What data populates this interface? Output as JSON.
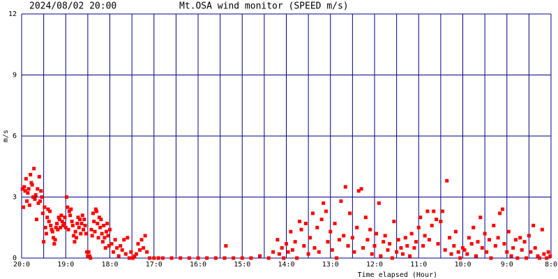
{
  "chart_data": {
    "type": "scatter",
    "date_label": "2024/08/02 20:00",
    "title": "Mt.OSA wind monitor (SPEED m/s)",
    "y_label": "m/s",
    "x_label": "Time elapsed (Hour)",
    "color": "#ff0000",
    "grid_color": "#000080",
    "grid": true,
    "xlim": [
      20,
      8
    ],
    "ylim": [
      0,
      12
    ],
    "yticks": [
      0,
      3,
      6,
      9,
      12
    ],
    "xticks": [
      {
        "value": 20,
        "label": "20:0"
      },
      {
        "value": 19,
        "label": "19:0"
      },
      {
        "value": 18,
        "label": "18:0"
      },
      {
        "value": 17,
        "label": "17:0"
      },
      {
        "value": 16,
        "label": "16:0"
      },
      {
        "value": 15,
        "label": "15:0"
      },
      {
        "value": 14,
        "label": "14:0"
      },
      {
        "value": 13,
        "label": "13:0"
      },
      {
        "value": 12,
        "label": "12:0"
      },
      {
        "value": 11,
        "label": "11:0"
      },
      {
        "value": 10,
        "label": "10:0"
      },
      {
        "value": 9,
        "label": "9:0"
      },
      {
        "value": 8,
        "label": "8:0"
      }
    ],
    "xminor": [
      19.5,
      18.5,
      17.5,
      16.5,
      15.5,
      14.5,
      13.5,
      12.5,
      11.5,
      10.5,
      9.5,
      8.5
    ],
    "x": [
      19.98,
      19.96,
      19.94,
      19.92,
      19.9,
      19.88,
      19.86,
      19.84,
      19.82,
      19.8,
      19.78,
      19.76,
      19.74,
      19.72,
      19.7,
      19.68,
      19.66,
      19.64,
      19.62,
      19.6,
      19.58,
      19.56,
      19.54,
      19.52,
      19.5,
      19.48,
      19.46,
      19.44,
      19.42,
      19.4,
      19.38,
      19.36,
      19.34,
      19.32,
      19.3,
      19.28,
      19.26,
      19.24,
      19.22,
      19.2,
      19.18,
      19.16,
      19.14,
      19.12,
      19.1,
      19.08,
      19.06,
      19.04,
      19.02,
      19.0,
      18.98,
      18.96,
      18.94,
      18.92,
      18.9,
      18.88,
      18.86,
      18.84,
      18.82,
      18.8,
      18.78,
      18.76,
      18.74,
      18.72,
      18.7,
      18.68,
      18.66,
      18.64,
      18.62,
      18.6,
      18.58,
      18.56,
      18.54,
      18.52,
      18.5,
      18.48,
      18.46,
      18.44,
      18.42,
      18.4,
      18.38,
      18.36,
      18.34,
      18.32,
      18.3,
      18.28,
      18.26,
      18.24,
      18.22,
      18.2,
      18.18,
      18.16,
      18.14,
      18.12,
      18.1,
      18.08,
      18.06,
      18.04,
      18.02,
      18.0,
      17.96,
      17.92,
      17.88,
      17.84,
      17.8,
      17.76,
      17.72,
      17.68,
      17.64,
      17.6,
      17.56,
      17.52,
      17.48,
      17.44,
      17.4,
      17.36,
      17.32,
      17.28,
      17.24,
      17.2,
      17.16,
      17.1,
      17.0,
      16.9,
      16.8,
      16.6,
      16.4,
      16.2,
      16.0,
      15.8,
      15.6,
      15.4,
      15.37,
      15.2,
      15.0,
      14.8,
      14.6,
      14.4,
      14.3,
      14.2,
      14.16,
      14.1,
      14.06,
      14.0,
      13.96,
      13.9,
      13.86,
      13.8,
      13.76,
      13.7,
      13.66,
      13.6,
      13.56,
      13.5,
      13.46,
      13.4,
      13.36,
      13.3,
      13.26,
      13.2,
      13.16,
      13.1,
      13.06,
      13.0,
      12.96,
      12.9,
      12.86,
      12.8,
      12.76,
      12.7,
      12.66,
      12.6,
      12.56,
      12.5,
      12.46,
      12.4,
      12.36,
      12.3,
      12.26,
      12.2,
      12.16,
      12.1,
      12.06,
      12.0,
      11.96,
      11.9,
      11.86,
      11.8,
      11.76,
      11.7,
      11.66,
      11.6,
      11.56,
      11.5,
      11.46,
      11.4,
      11.36,
      11.3,
      11.26,
      11.2,
      11.16,
      11.1,
      11.06,
      11.0,
      10.96,
      10.9,
      10.86,
      10.8,
      10.76,
      10.7,
      10.66,
      10.6,
      10.56,
      10.5,
      10.46,
      10.4,
      10.36,
      10.3,
      10.26,
      10.2,
      10.16,
      10.1,
      10.06,
      10.0,
      9.96,
      9.9,
      9.86,
      9.8,
      9.76,
      9.7,
      9.66,
      9.6,
      9.56,
      9.5,
      9.46,
      9.4,
      9.36,
      9.3,
      9.26,
      9.2,
      9.16,
      9.1,
      9.06,
      9.0,
      8.96,
      8.9,
      8.86,
      8.8,
      8.76,
      8.7,
      8.66,
      8.6,
      8.56,
      8.5,
      8.46,
      8.4,
      8.36,
      8.3,
      8.26,
      8.2,
      8.16,
      8.1,
      8.06,
      8.02
    ],
    "values": [
      3.4,
      2.5,
      3.5,
      3.3,
      3.9,
      2.8,
      3.2,
      3.4,
      2.6,
      4.1,
      3.7,
      3.6,
      3.0,
      4.4,
      2.9,
      3.1,
      1.9,
      3.4,
      2.7,
      4.0,
      2.8,
      3.3,
      3.0,
      2.2,
      0.8,
      2.5,
      1.5,
      1.2,
      2.0,
      2.4,
      1.8,
      2.3,
      1.6,
      1.4,
      1.3,
      1.0,
      0.7,
      0.9,
      1.5,
      1.7,
      1.4,
      2.0,
      1.9,
      1.5,
      2.1,
      1.8,
      1.6,
      1.7,
      2.0,
      1.5,
      3.0,
      2.5,
      1.4,
      2.3,
      2.1,
      2.4,
      1.8,
      1.6,
      1.1,
      0.8,
      1.3,
      1.0,
      1.7,
      2.0,
      1.5,
      1.9,
      1.2,
      1.7,
      2.1,
      1.4,
      1.9,
      1.6,
      1.2,
      0.3,
      0.1,
      0.3,
      0.1,
      0.0,
      1.4,
      1.1,
      2.2,
      1.8,
      1.3,
      2.4,
      2.3,
      1.7,
      1.0,
      2.0,
      1.5,
      1.9,
      1.2,
      0.8,
      1.6,
      1.0,
      0.5,
      1.3,
      1.7,
      1.1,
      0.6,
      1.4,
      0.7,
      0.3,
      0.9,
      0.5,
      0.1,
      0.6,
      0.4,
      0.9,
      0.2,
      1.0,
      0.0,
      0.3,
      0.0,
      0.1,
      0.2,
      0.7,
      0.4,
      0.9,
      0.5,
      1.1,
      0.3,
      0.0,
      0.0,
      0.0,
      0.0,
      0.0,
      0.0,
      0.0,
      0.0,
      0.0,
      0.0,
      0.0,
      0.6,
      0.0,
      0.0,
      0.0,
      0.1,
      0.0,
      0.3,
      0.9,
      0.2,
      0.5,
      0.0,
      0.7,
      0.3,
      1.3,
      0.4,
      0.8,
      0.0,
      1.8,
      1.4,
      0.6,
      1.7,
      0.2,
      1.0,
      2.2,
      0.5,
      1.5,
      0.3,
      1.9,
      2.7,
      2.3,
      0.8,
      1.3,
      0.4,
      1.7,
      0.0,
      0.9,
      2.8,
      1.1,
      3.5,
      0.6,
      2.2,
      1.0,
      0.3,
      1.5,
      3.3,
      3.4,
      0.5,
      2.0,
      0.9,
      1.4,
      0.2,
      0.6,
      1.2,
      2.7,
      0.1,
      0.8,
      1.1,
      0.4,
      0.7,
      0.0,
      1.8,
      0.3,
      0.9,
      0.5,
      0.2,
      1.0,
      0.6,
      0.1,
      1.2,
      0.5,
      0.8,
      1.5,
      2.0,
      0.6,
      1.1,
      2.3,
      0.9,
      1.6,
      2.3,
      1.9,
      0.7,
      1.8,
      2.3,
      0.4,
      3.8,
      1.0,
      0.2,
      0.6,
      1.3,
      0.3,
      0.0,
      0.5,
      0.4,
      0.2,
      1.0,
      0.7,
      1.5,
      0.1,
      0.8,
      2.0,
      0.5,
      1.2,
      0.3,
      0.9,
      0.0,
      1.6,
      0.6,
      1.0,
      2.2,
      2.4,
      0.7,
      0.3,
      1.3,
      0.1,
      0.5,
      0.9,
      0.0,
      1.0,
      0.4,
      0.8,
      0.0,
      1.1,
      0.3,
      1.6,
      0.5,
      0.1,
      0.0,
      1.4,
      0.2,
      0.0,
      0.3,
      0.1
    ]
  }
}
